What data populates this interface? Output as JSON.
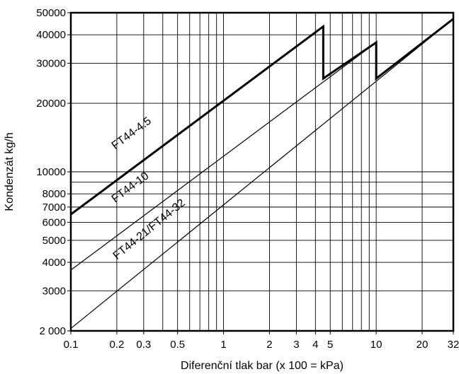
{
  "chart_data": {
    "type": "line",
    "xlabel": "Diferenční tlak bar (x 100 = kPa)",
    "ylabel": "Kondenzát  kg/h",
    "x_scale": "log",
    "y_scale": "log",
    "xlim": [
      0.1,
      32
    ],
    "ylim": [
      2000,
      50000
    ],
    "x_ticks": [
      0.1,
      0.2,
      0.3,
      0.5,
      1,
      2,
      3,
      4,
      5,
      10,
      20,
      32
    ],
    "x_tick_labels": [
      "0.1",
      "0.2",
      "0.3",
      "0.5",
      "1",
      "2",
      "3",
      "4",
      "5",
      "10",
      "20",
      "32"
    ],
    "y_ticks": [
      2000,
      3000,
      4000,
      5000,
      6000,
      7000,
      8000,
      10000,
      20000,
      30000,
      40000,
      50000
    ],
    "y_tick_labels": [
      "2 000",
      "3000",
      "4000",
      "5000",
      "6000",
      "7000",
      "8000",
      "10000",
      "20000",
      "30000",
      "40000",
      "50000"
    ],
    "x_gridlines": [
      0.2,
      0.3,
      0.4,
      0.5,
      0.6,
      0.7,
      0.8,
      0.9,
      1,
      2,
      3,
      4,
      5,
      6,
      7,
      8,
      9,
      10,
      20
    ],
    "y_gridlines": [
      3000,
      4000,
      5000,
      6000,
      7000,
      8000,
      9000,
      10000,
      20000,
      30000,
      40000
    ],
    "grid": true,
    "series": [
      {
        "name": "FT44-4.5",
        "line_width": "thin",
        "points": [
          [
            0.1,
            6500
          ],
          [
            4.5,
            43500
          ]
        ]
      },
      {
        "name": "FT44-10",
        "line_width": "thin",
        "points": [
          [
            0.1,
            3700
          ],
          [
            10,
            37000
          ]
        ]
      },
      {
        "name": "FT44-21/FT44-32",
        "line_width": "thin",
        "points": [
          [
            0.1,
            2050
          ],
          [
            32,
            47000
          ]
        ]
      }
    ],
    "envelope": {
      "line_width": "thick",
      "points": [
        [
          0.1,
          6500
        ],
        [
          4.5,
          43500
        ],
        [
          4.5,
          25700
        ],
        [
          10,
          37000
        ],
        [
          10,
          25700
        ],
        [
          32,
          47000
        ]
      ]
    },
    "labels": [
      {
        "text": "FT44-4.5",
        "x": 0.195,
        "y": 12500
      },
      {
        "text": "FT44-10",
        "x": 0.195,
        "y": 7300
      },
      {
        "text": "FT44-21/FT44-32",
        "x": 0.2,
        "y": 4100
      }
    ]
  }
}
